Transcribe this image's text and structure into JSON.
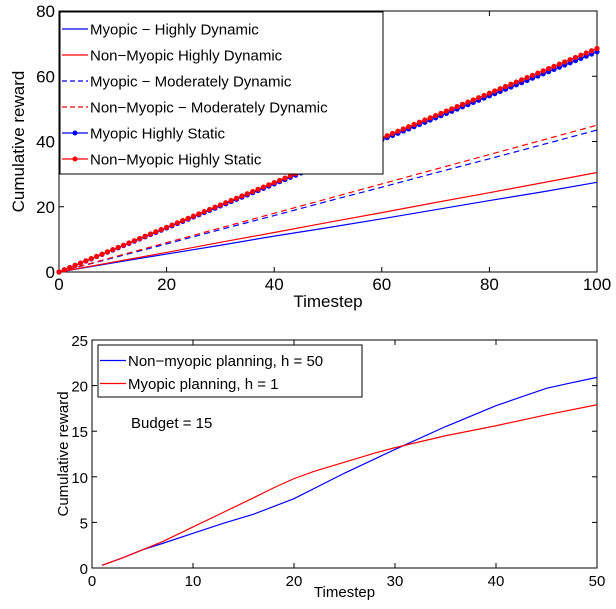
{
  "chart_data": [
    {
      "type": "line",
      "xlabel": "Timestep",
      "ylabel": "Cumulative reward",
      "xlim": [
        0,
        100
      ],
      "ylim": [
        0,
        80
      ],
      "xticks": [
        "0",
        "20",
        "40",
        "60",
        "80",
        "100"
      ],
      "yticks": [
        "0",
        "20",
        "40",
        "60",
        "80"
      ],
      "legend_position": "top-left",
      "series": [
        {
          "name": "Myopic − Highly Dynamic",
          "color": "#0000ff",
          "style": "solid",
          "marker": "none",
          "x": [
            0,
            10,
            20,
            30,
            40,
            50,
            60,
            70,
            80,
            90,
            100
          ],
          "y": [
            0,
            2.8,
            5.5,
            8.2,
            11.0,
            13.6,
            16.3,
            19.1,
            21.9,
            24.6,
            27.5
          ]
        },
        {
          "name": "Non−Myopic Highly Dynamic",
          "color": "#ff0000",
          "style": "solid",
          "marker": "none",
          "x": [
            0,
            10,
            20,
            30,
            40,
            50,
            60,
            70,
            80,
            90,
            100
          ],
          "y": [
            0,
            3.0,
            6.0,
            9.1,
            12.1,
            15.2,
            18.2,
            21.3,
            24.3,
            27.4,
            30.5
          ]
        },
        {
          "name": "Myopic − Moderately Dynamic",
          "color": "#0000ff",
          "style": "dashed",
          "marker": "none",
          "x": [
            0,
            10,
            20,
            30,
            40,
            50,
            60,
            70,
            80,
            90,
            100
          ],
          "y": [
            0,
            4.3,
            8.6,
            13.0,
            17.3,
            21.7,
            26.0,
            30.4,
            34.7,
            39.1,
            43.5
          ]
        },
        {
          "name": "Non−Myopic − Moderately Dynamic",
          "color": "#ff0000",
          "style": "dashed",
          "marker": "none",
          "x": [
            0,
            10,
            20,
            30,
            40,
            50,
            60,
            70,
            80,
            90,
            100
          ],
          "y": [
            0,
            4.5,
            9.0,
            13.5,
            18.0,
            22.5,
            27.0,
            31.5,
            36.0,
            40.5,
            45.0
          ]
        },
        {
          "name": "Myopic Highly Static",
          "color": "#0000ff",
          "style": "solid",
          "marker": "circle",
          "x_start": 0,
          "x_end": 100,
          "y_start": 0,
          "y_end": 67.5
        },
        {
          "name": "Non−Myopic Highly Static",
          "color": "#ff0000",
          "style": "solid",
          "marker": "circle",
          "x_start": 0,
          "x_end": 100,
          "y_start": 0,
          "y_end": 68.5
        }
      ]
    },
    {
      "type": "line",
      "xlabel": "Timestep",
      "ylabel": "Cumulative reward",
      "xlim": [
        0,
        50
      ],
      "ylim": [
        0,
        25
      ],
      "xticks": [
        "0",
        "10",
        "20",
        "30",
        "40",
        "50"
      ],
      "yticks": [
        "0",
        "5",
        "10",
        "15",
        "20",
        "25"
      ],
      "legend_position": "top-left",
      "annotation": "Budget = 15",
      "series": [
        {
          "name": "Non−myopic planning, h = 50",
          "color": "#0000ff",
          "style": "solid",
          "x": [
            1,
            3,
            5,
            7,
            10,
            13,
            16,
            20,
            25,
            30,
            35,
            40,
            45,
            47,
            50
          ],
          "y": [
            0.3,
            1.1,
            2.0,
            2.7,
            3.8,
            4.9,
            5.9,
            7.6,
            10.4,
            13.0,
            15.5,
            17.8,
            19.7,
            20.2,
            20.9
          ]
        },
        {
          "name": "Myopic planning, h = 1",
          "color": "#ff0000",
          "style": "solid",
          "x": [
            1,
            3,
            5,
            7,
            10,
            13,
            16,
            18,
            20,
            22,
            25,
            28,
            30,
            35,
            40,
            45,
            50
          ],
          "y": [
            0.3,
            1.1,
            2.0,
            2.9,
            4.5,
            6.1,
            7.7,
            8.8,
            9.8,
            10.6,
            11.6,
            12.6,
            13.2,
            14.5,
            15.6,
            16.8,
            17.9
          ]
        }
      ]
    }
  ]
}
